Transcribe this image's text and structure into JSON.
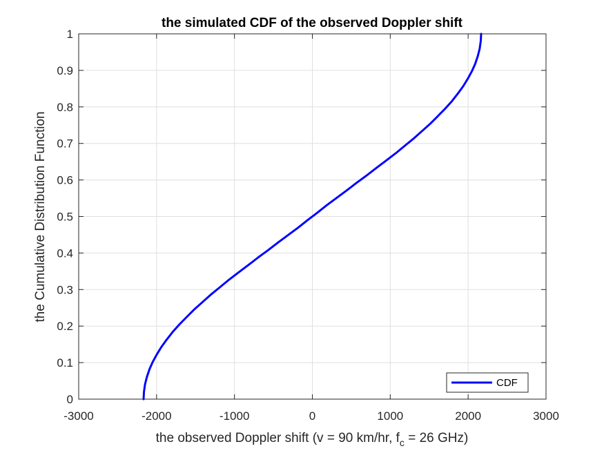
{
  "chart_data": {
    "type": "line",
    "title": "the simulated CDF of the observed Doppler shift",
    "xlabel": {
      "pre": "the observed Doppler shift (v = 90 km/hr, f",
      "sub": "c",
      "post": " = 26 GHz)"
    },
    "ylabel": "the Cumulative Distribution Function",
    "xlim": [
      -3000,
      3000
    ],
    "ylim": [
      0,
      1
    ],
    "xticks": [
      -3000,
      -2000,
      -1000,
      0,
      1000,
      2000,
      3000
    ],
    "yticks": [
      0,
      0.1,
      0.2,
      0.3,
      0.4,
      0.5,
      0.6,
      0.7,
      0.8,
      0.9,
      1
    ],
    "xtick_labels": [
      "-3000",
      "-2000",
      "-1000",
      "0",
      "1000",
      "2000",
      "3000"
    ],
    "ytick_labels": [
      "0",
      "0.1",
      "0.2",
      "0.3",
      "0.4",
      "0.5",
      "0.6",
      "0.7",
      "0.8",
      "0.9",
      "1"
    ],
    "grid": true,
    "legend_position": "bottom-right",
    "series": [
      {
        "name": "CDF",
        "color": "#0000ff",
        "x": [
          -2167,
          -2162,
          -2148,
          -2124,
          -2091,
          -2049,
          -1998,
          -1938,
          -1870,
          -1793,
          -1709,
          -1617,
          -1519,
          -1414,
          -1304,
          -1189,
          -1070,
          -947,
          -822,
          -695,
          -567,
          -439,
          -312,
          -186,
          -62,
          62,
          186,
          312,
          439,
          567,
          695,
          822,
          947,
          1070,
          1189,
          1304,
          1414,
          1519,
          1617,
          1709,
          1793,
          1870,
          1938,
          1998,
          2049,
          2091,
          2124,
          2148,
          2162,
          2167
        ],
        "y": [
          0.0,
          0.02,
          0.041,
          0.061,
          0.082,
          0.102,
          0.122,
          0.143,
          0.163,
          0.184,
          0.204,
          0.224,
          0.245,
          0.265,
          0.286,
          0.306,
          0.327,
          0.347,
          0.367,
          0.388,
          0.408,
          0.429,
          0.449,
          0.469,
          0.49,
          0.51,
          0.531,
          0.551,
          0.571,
          0.592,
          0.612,
          0.633,
          0.653,
          0.673,
          0.694,
          0.714,
          0.735,
          0.755,
          0.776,
          0.796,
          0.816,
          0.837,
          0.857,
          0.878,
          0.898,
          0.918,
          0.939,
          0.959,
          0.98,
          1.0
        ]
      }
    ]
  }
}
